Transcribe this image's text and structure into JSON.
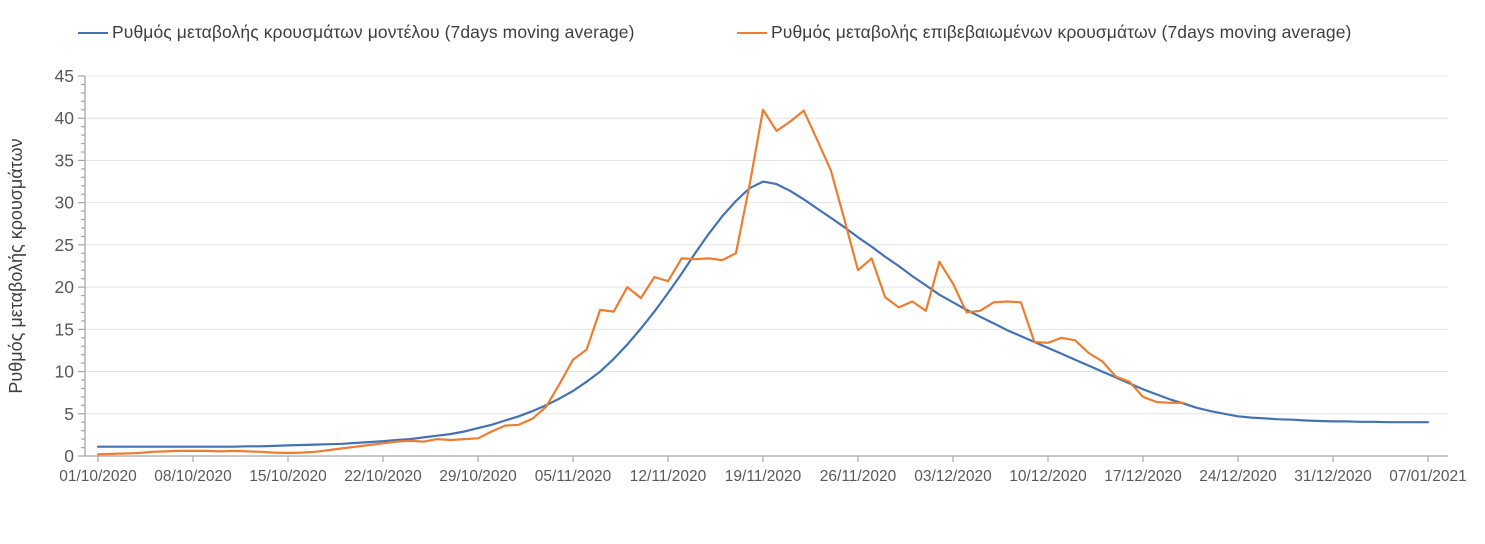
{
  "chart_data": {
    "type": "line",
    "title": "",
    "xlabel": "",
    "ylabel": "Ρυθμός μεταβολής κρουσμάτων",
    "ylim": [
      0,
      45
    ],
    "y_major_step": 5,
    "y_minor_step": 1,
    "grid": "horizontal gridlines every 5 units, light gray",
    "legend_position": "top",
    "x_axis_note": "daily data points; one labeled tick every 7 days",
    "x_tick_labels": [
      "01/10/2020",
      "08/10/2020",
      "15/10/2020",
      "22/10/2020",
      "29/10/2020",
      "05/11/2020",
      "12/11/2020",
      "19/11/2020",
      "26/11/2020",
      "03/12/2020",
      "10/12/2020",
      "17/12/2020",
      "24/12/2020",
      "31/12/2020",
      "07/01/2021"
    ],
    "series": [
      {
        "name": "Ρυθμός μεταβολής κρουσμάτων μοντέλου (7days moving average)",
        "color": "#4472b2",
        "start_date": "01/10/2020",
        "end_date": "07/01/2021",
        "values": [
          1.1,
          1.1,
          1.1,
          1.1,
          1.1,
          1.1,
          1.1,
          1.1,
          1.1,
          1.1,
          1.1,
          1.15,
          1.15,
          1.2,
          1.25,
          1.3,
          1.35,
          1.4,
          1.45,
          1.55,
          1.65,
          1.75,
          1.9,
          2.0,
          2.2,
          2.4,
          2.6,
          2.9,
          3.3,
          3.7,
          4.2,
          4.7,
          5.3,
          6.0,
          6.8,
          7.7,
          8.8,
          10.0,
          11.5,
          13.2,
          15.1,
          17.1,
          19.3,
          21.6,
          24.0,
          26.3,
          28.4,
          30.2,
          31.7,
          32.5,
          32.2,
          31.4,
          30.4,
          29.3,
          28.2,
          27.1,
          25.9,
          24.8,
          23.6,
          22.5,
          21.3,
          20.2,
          19.1,
          18.2,
          17.3,
          16.5,
          15.7,
          14.9,
          14.2,
          13.5,
          12.8,
          12.1,
          11.4,
          10.7,
          10.0,
          9.3,
          8.6,
          7.9,
          7.3,
          6.7,
          6.2,
          5.7,
          5.3,
          5.0,
          4.7,
          4.55,
          4.45,
          4.35,
          4.3,
          4.2,
          4.15,
          4.1,
          4.1,
          4.05,
          4.05,
          4.0,
          4.0,
          4.0,
          4.0
        ]
      },
      {
        "name": "Ρυθμός μεταβολής επιβεβαιωμένων κρουσμάτων (7days moving average)",
        "color": "#ed7d31",
        "start_date": "01/10/2020",
        "end_date": "20/12/2020",
        "values": [
          0.2,
          0.25,
          0.3,
          0.35,
          0.5,
          0.55,
          0.6,
          0.6,
          0.6,
          0.55,
          0.6,
          0.55,
          0.5,
          0.4,
          0.35,
          0.4,
          0.5,
          0.7,
          0.9,
          1.1,
          1.3,
          1.5,
          1.7,
          1.8,
          1.7,
          2.0,
          1.9,
          2.0,
          2.1,
          2.9,
          3.6,
          3.7,
          4.4,
          5.8,
          8.5,
          11.4,
          12.6,
          17.3,
          17.1,
          20.0,
          18.7,
          21.2,
          20.7,
          23.4,
          23.3,
          23.4,
          23.2,
          24.0,
          32.0,
          41.0,
          38.5,
          39.6,
          40.9,
          37.4,
          33.8,
          28.0,
          22.0,
          23.4,
          18.8,
          17.6,
          18.3,
          17.2,
          23.0,
          20.4,
          17.0,
          17.2,
          18.2,
          18.3,
          18.2,
          13.5,
          13.4,
          14.0,
          13.7,
          12.2,
          11.2,
          9.4,
          8.8,
          7.0,
          6.4,
          6.3,
          6.3
        ]
      }
    ]
  },
  "style": {
    "axis_color": "#a6a6a6",
    "gridline_color": "#e4e4e4",
    "tick_label_color": "#595959",
    "title_color": "#3f3f3f",
    "background": "#ffffff"
  }
}
